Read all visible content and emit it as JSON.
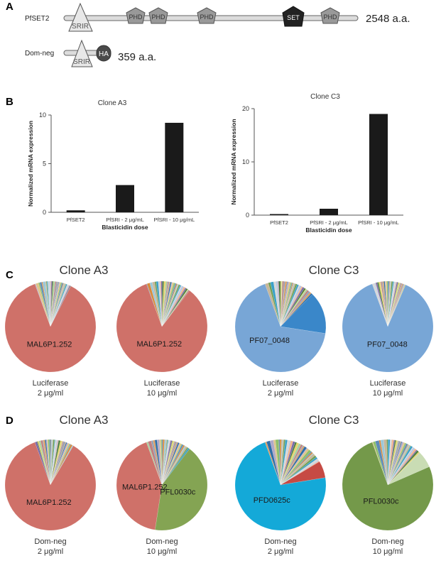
{
  "panel_labels": {
    "a": "A",
    "b": "B",
    "c": "C",
    "d": "D"
  },
  "panel_a": {
    "proteins": [
      {
        "name": "PfSET2",
        "length": "2548 a.a.",
        "domains": [
          {
            "label": "SRIR",
            "shape": "triangle"
          },
          {
            "label": "PHD",
            "shape": "pentagon"
          },
          {
            "label": "PHD",
            "shape": "pentagon"
          },
          {
            "label": "PHD",
            "shape": "pentagon"
          },
          {
            "label": "SET",
            "shape": "pentagon-dark"
          },
          {
            "label": "PHD",
            "shape": "pentagon"
          }
        ]
      },
      {
        "name": "Dom-neg",
        "length": "359 a.a.",
        "domains": [
          {
            "label": "SRIR",
            "shape": "triangle"
          },
          {
            "label": "HA",
            "shape": "capsule-dark"
          }
        ]
      }
    ]
  },
  "chart_data": [
    {
      "type": "bar",
      "title": "Clone A3",
      "categories": [
        "PfSET2",
        "PfSRI - 2 μg/mL",
        "PfSRI - 10 μg/mL"
      ],
      "values": [
        0.2,
        2.8,
        9.2
      ],
      "ylim": [
        0,
        10
      ],
      "yticks": [
        0,
        5,
        10
      ],
      "xlabel": "Blasticidin dose",
      "ylabel": "Normalized mRNA expression",
      "bar_color": "#1a1a1a"
    },
    {
      "type": "bar",
      "title": "Clone C3",
      "categories": [
        "PfSET2",
        "PfSRI - 2 μg/mL",
        "PfSRI - 10 μg/mL"
      ],
      "values": [
        0.2,
        1.2,
        19.0
      ],
      "ylim": [
        0,
        20
      ],
      "yticks": [
        0,
        10,
        20
      ],
      "xlabel": "Blasticidin dose",
      "ylabel": "Normalized mRNA expression",
      "bar_color": "#1a1a1a"
    },
    {
      "type": "pie",
      "group_title": "Clone A3",
      "caption": [
        "Luciferase",
        "2 μg/ml"
      ],
      "dominant": {
        "label": "MAL6P1.252",
        "color": "#cf7169",
        "fraction": 0.87
      }
    },
    {
      "type": "pie",
      "caption": [
        "Luciferase",
        "10 μg/ml"
      ],
      "dominant": {
        "label": "MAL6P1.252",
        "color": "#cf7169",
        "fraction": 0.84
      }
    },
    {
      "type": "pie",
      "group_title": "Clone C3",
      "caption": [
        "Luciferase",
        "2 μg/ml"
      ],
      "dominant": {
        "label": "PF07_0048",
        "color": "#78a6d6",
        "fraction": 0.67
      },
      "second": {
        "color": "#3a87c9",
        "fraction": 0.15
      }
    },
    {
      "type": "pie",
      "caption": [
        "Luciferase",
        "10 μg/ml"
      ],
      "dominant": {
        "label": "PF07_0048",
        "color": "#78a6d6",
        "fraction": 0.88
      }
    },
    {
      "type": "pie",
      "group_title": "Clone A3",
      "caption": [
        "Dom-neg",
        "2 μg/ml"
      ],
      "dominant": {
        "label": "MAL6P1.252",
        "color": "#cf7169",
        "fraction": 0.86
      }
    },
    {
      "type": "pie",
      "caption": [
        "Dom-neg",
        "10 μg/ml"
      ],
      "dominant": {
        "label": "MAL6P1.252",
        "color": "#cf7169",
        "fraction": 0.42
      },
      "second": {
        "label": "PFL0030c",
        "color": "#84a453",
        "fraction": 0.42
      }
    },
    {
      "type": "pie",
      "group_title": "Clone C3",
      "caption": [
        "Dom-neg",
        "2 μg/ml"
      ],
      "dominant": {
        "label": "PFD0625c",
        "color": "#14a9d8",
        "fraction": 0.72
      },
      "second": {
        "color": "#c64a44",
        "fraction": 0.06
      }
    },
    {
      "type": "pie",
      "caption": [
        "Dom-neg",
        "10 μg/ml"
      ],
      "dominant": {
        "label": "PFL0030c",
        "color": "#74994a",
        "fraction": 0.76
      },
      "second": {
        "color": "#c9dcb4",
        "fraction": 0.06
      }
    }
  ],
  "minor_slice_palette": [
    "#b0a8c8",
    "#e0c48a",
    "#8fbf6a",
    "#5d8ab8",
    "#d98b3a",
    "#9bc7d9",
    "#c7b79a",
    "#6f9f55",
    "#3aa0c8",
    "#d7d7d7",
    "#b4c8e4",
    "#f2b48c",
    "#7a6aa8",
    "#4b7f3c",
    "#e8d36a",
    "#a8d0a0",
    "#c08080",
    "#8ea0b8",
    "#e09d5a",
    "#2f6ea8"
  ]
}
